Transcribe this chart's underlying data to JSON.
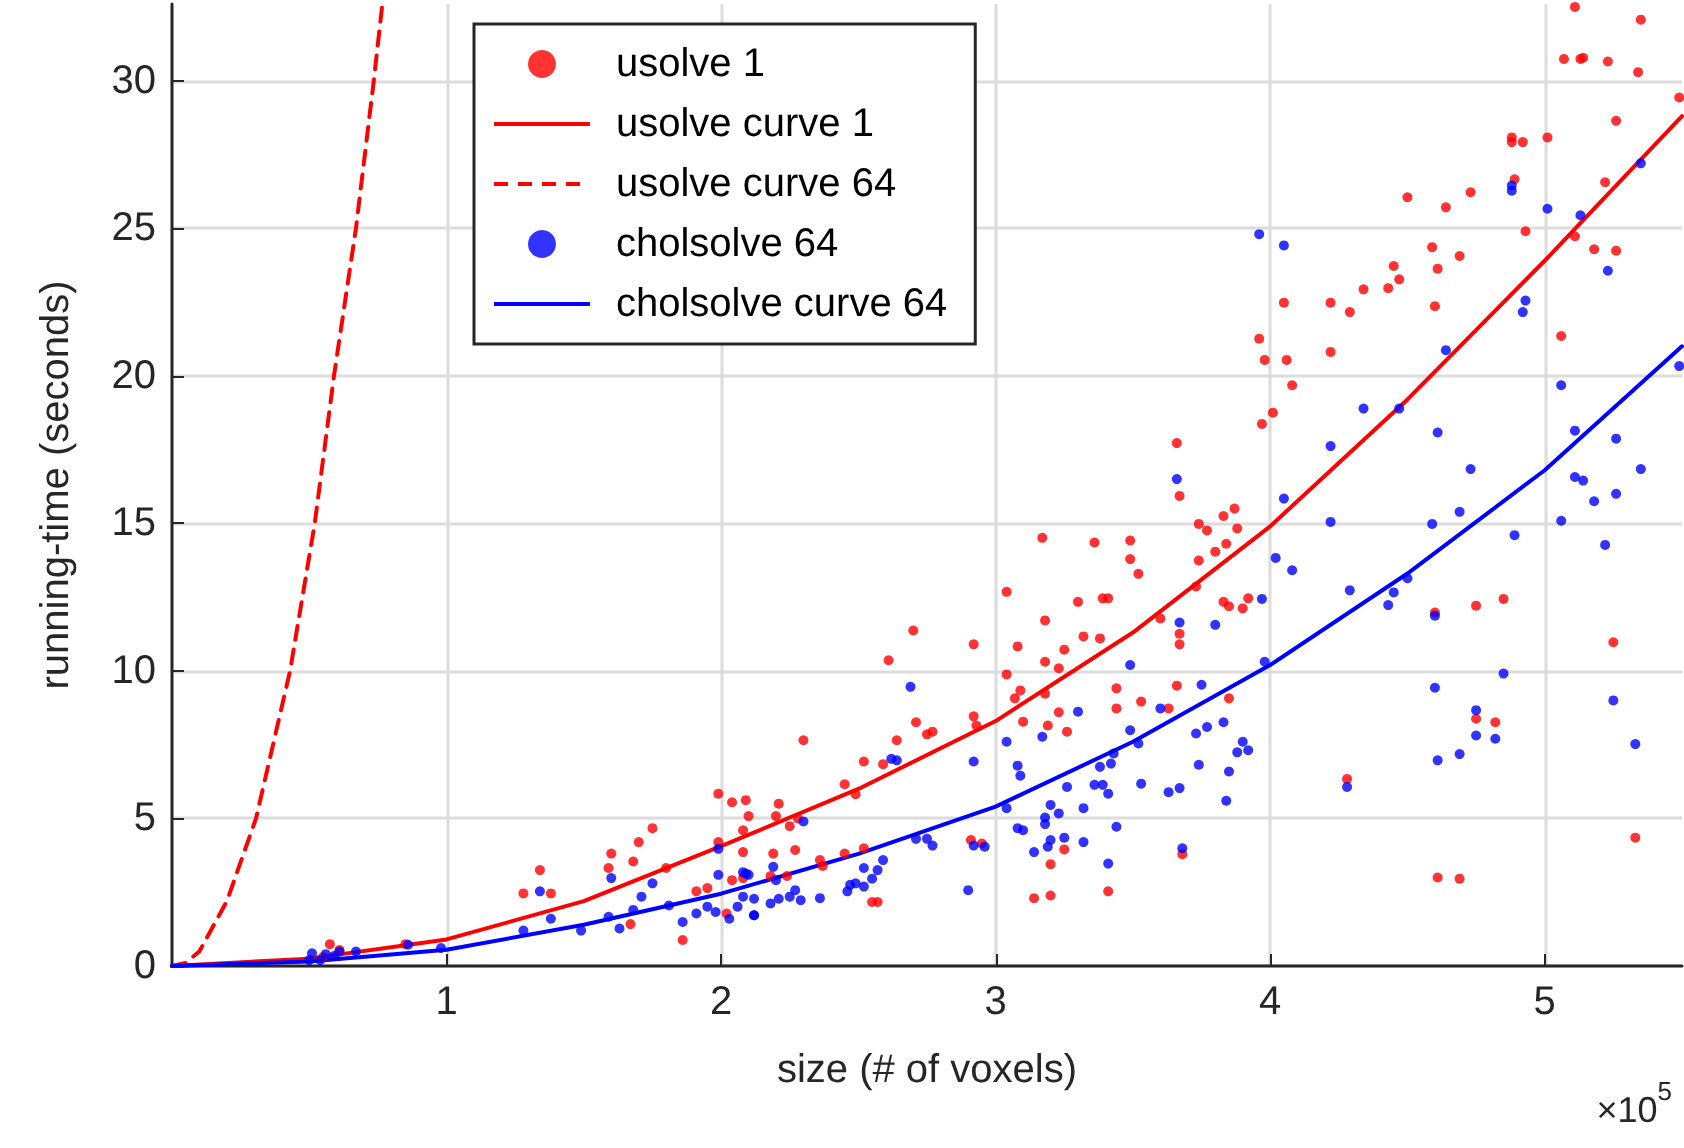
{
  "chart_data": {
    "type": "scatter",
    "xlabel": "size (# of voxels)",
    "ylabel": "running-time (seconds)",
    "annotations": [
      "×10$^{5}$"
    ],
    "xlim": [
      0,
      5.5
    ],
    "xticks": [
      1,
      2,
      3,
      4,
      5
    ],
    "ylim": [
      0,
      32.6
    ],
    "yticks": [
      0,
      5,
      10,
      15,
      20,
      25,
      30
    ],
    "grid": true,
    "legend": "top",
    "marker": "circle",
    "series": [
      {
        "name": "usolve 1",
        "type": "scatter",
        "color": "#ff0000",
        "x": [
          0.55,
          0.575,
          0.61,
          0.85,
          1.28,
          1.34,
          1.38,
          1.6,
          1.59,
          1.68,
          1.7,
          1.75,
          1.8,
          1.67,
          1.86,
          1.91,
          1.95,
          1.99,
          2.04,
          2.09,
          2.1,
          2.08,
          2.08,
          1.99,
          2.04,
          2.08,
          2.02,
          2.21,
          2.2,
          2.25,
          2.28,
          2.3,
          2.27,
          2.19,
          2.18,
          2.24,
          2.36,
          2.37,
          2.45,
          2.52,
          2.45,
          2.49,
          2.52,
          2.59,
          2.61,
          2.64,
          2.7,
          2.71,
          2.75,
          2.77,
          2.55,
          2.57,
          2.91,
          2.95,
          2.92,
          2.92,
          2.93,
          3.04,
          3.04,
          3.08,
          3.07,
          3.09,
          3.1,
          3.17,
          3.18,
          3.18,
          3.18,
          3.19,
          3.23,
          3.23,
          3.25,
          3.26,
          3.3,
          3.32,
          3.36,
          3.38,
          3.39,
          3.41,
          3.14,
          3.2,
          3.2,
          3.25,
          3.41,
          3.44,
          3.44,
          3.49,
          3.49,
          3.52,
          3.53,
          3.6,
          3.63,
          3.66,
          3.67,
          3.67,
          3.67,
          3.66,
          3.68,
          3.73,
          3.74,
          3.77,
          3.74,
          3.8,
          3.83,
          3.87,
          3.88,
          3.84,
          3.83,
          3.85,
          3.9,
          3.92,
          3.85,
          3.97,
          4.01,
          3.96,
          3.98,
          4.05,
          4.06,
          4.08,
          4.22,
          4.22,
          4.29,
          4.34,
          4.43,
          4.45,
          4.47,
          4.5,
          4.59,
          4.6,
          4.61,
          4.64,
          4.69,
          4.73,
          4.28,
          4.6,
          4.75,
          4.85,
          4.75,
          4.82,
          4.61,
          4.69,
          4.88,
          4.88,
          4.92,
          4.89,
          4.93,
          5.01,
          5.06,
          5.07,
          5.11,
          5.13,
          5.14,
          5.11,
          5.18,
          5.22,
          5.23,
          5.26,
          5.26,
          5.25,
          5.35,
          5.34,
          5.33,
          5.49
        ],
        "values": [
          0.3,
          0.74,
          0.54,
          0.74,
          2.46,
          3.25,
          2.46,
          3.81,
          3.32,
          3.54,
          4.2,
          4.67,
          3.32,
          1.42,
          0.88,
          2.53,
          2.64,
          5.84,
          5.55,
          5.62,
          5.08,
          4.6,
          3.86,
          4.2,
          2.91,
          2.98,
          1.78,
          5.5,
          5.08,
          4.74,
          5.0,
          7.65,
          3.93,
          3.81,
          3.05,
          3.05,
          3.59,
          3.39,
          3.81,
          3.99,
          6.16,
          5.82,
          6.93,
          6.84,
          10.36,
          7.65,
          11.37,
          8.26,
          7.85,
          7.94,
          2.17,
          2.17,
          4.27,
          4.15,
          10.9,
          8.46,
          8.15,
          12.68,
          9.88,
          10.83,
          9.07,
          9.34,
          8.28,
          14.51,
          11.71,
          10.31,
          9.23,
          8.15,
          8.6,
          10.09,
          10.72,
          7.94,
          12.34,
          11.17,
          14.35,
          11.1,
          12.46,
          12.46,
          2.3,
          2.39,
          3.45,
          3.95,
          2.53,
          9.41,
          8.73,
          14.42,
          13.79,
          13.29,
          8.96,
          11.78,
          8.73,
          17.72,
          15.93,
          11.26,
          10.9,
          9.5,
          3.79,
          12.86,
          14.98,
          14.76,
          13.74,
          14.04,
          15.25,
          15.5,
          14.83,
          14.31,
          12.34,
          12.19,
          12.12,
          12.46,
          9.07,
          18.37,
          18.75,
          21.26,
          20.54,
          22.48,
          20.54,
          19.68,
          20.81,
          22.48,
          22.16,
          22.93,
          22.97,
          23.72,
          23.27,
          26.05,
          24.36,
          22.36,
          23.63,
          25.71,
          24.06,
          26.22,
          6.34,
          11.98,
          12.21,
          12.44,
          8.38,
          8.26,
          3.0,
          2.96,
          28.08,
          27.92,
          27.92,
          26.66,
          24.9,
          28.08,
          21.35,
          30.74,
          32.5,
          30.74,
          30.78,
          24.73,
          24.29,
          26.56,
          30.65,
          28.64,
          24.24,
          10.97,
          32.07,
          30.29,
          4.35,
          29.43
        ]
      },
      {
        "name": "usolve curve 1",
        "type": "line",
        "color": "#ff0000",
        "line_style": "solid",
        "marker": "none",
        "x": [
          0,
          0.5,
          1,
          1.5,
          2,
          2.5,
          3,
          3.5,
          4,
          4.5,
          5,
          5.5
        ],
        "values": [
          0,
          0.25,
          0.9,
          2.2,
          4.06,
          6.0,
          8.3,
          11.3,
          14.9,
          19.2,
          23.9,
          28.8
        ]
      },
      {
        "name": "usolve curve 64",
        "type": "line",
        "color": "#ff0000",
        "line_style": "dashed",
        "marker": "none",
        "x": [
          0,
          0.05,
          0.1,
          0.2,
          0.306,
          0.43,
          0.52,
          0.59,
          0.67,
          0.735,
          0.765
        ],
        "values": [
          0,
          0.1,
          0.5,
          2.2,
          5,
          10,
          15,
          20,
          25,
          30,
          32.5
        ]
      },
      {
        "name": "cholsolve 64",
        "type": "scatter",
        "color": "#0000ff",
        "x": [
          0.51,
          0.54,
          0.56,
          0.59,
          0.61,
          0.67,
          0.5,
          0.86,
          0.98,
          1.28,
          1.34,
          1.38,
          1.49,
          1.6,
          1.59,
          1.63,
          1.68,
          1.71,
          1.75,
          1.81,
          1.86,
          1.91,
          1.95,
          1.99,
          1.99,
          1.98,
          2.03,
          2.06,
          2.08,
          2.1,
          2.12,
          2.08,
          2.12,
          2.12,
          2.09,
          2.18,
          2.2,
          2.21,
          2.25,
          2.27,
          2.3,
          2.29,
          2.19,
          2.36,
          2.46,
          2.47,
          2.49,
          2.52,
          2.55,
          2.57,
          2.59,
          2.52,
          2.62,
          2.64,
          2.69,
          2.71,
          2.75,
          2.77,
          2.9,
          2.92,
          2.92,
          2.96,
          3.04,
          3.04,
          3.08,
          3.09,
          3.08,
          3.1,
          3.14,
          3.17,
          3.18,
          3.18,
          3.19,
          3.2,
          3.2,
          3.23,
          3.25,
          3.26,
          3.3,
          3.32,
          3.32,
          3.36,
          3.38,
          3.39,
          3.41,
          3.41,
          3.42,
          3.43,
          3.44,
          3.49,
          3.49,
          3.52,
          3.53,
          3.6,
          3.63,
          3.67,
          3.66,
          3.67,
          3.68,
          3.73,
          3.74,
          3.75,
          3.77,
          3.8,
          3.83,
          3.84,
          3.85,
          3.88,
          3.9,
          3.92,
          3.96,
          3.97,
          3.98,
          4.02,
          4.05,
          4.05,
          4.08,
          4.22,
          4.22,
          4.28,
          4.29,
          4.34,
          4.43,
          4.45,
          4.47,
          4.5,
          4.59,
          4.6,
          4.6,
          4.61,
          4.61,
          4.64,
          4.69,
          4.69,
          4.73,
          4.75,
          4.75,
          4.82,
          4.85,
          4.88,
          4.88,
          4.89,
          4.92,
          4.93,
          5.01,
          5.06,
          5.06,
          5.11,
          5.11,
          5.13,
          5.14,
          5.18,
          5.22,
          5.23,
          5.25,
          5.26,
          5.26,
          5.33,
          5.35,
          5.35,
          5.49
        ],
        "values": [
          0.43,
          0.2,
          0.4,
          0.34,
          0.49,
          0.49,
          0.2,
          0.72,
          0.61,
          1.2,
          2.53,
          1.6,
          1.2,
          2.98,
          1.67,
          1.27,
          1.9,
          2.35,
          2.8,
          2.05,
          1.49,
          1.78,
          2.01,
          3.09,
          3.97,
          1.83,
          1.6,
          2.01,
          3.18,
          3.09,
          1.72,
          2.35,
          2.28,
          1.72,
          3.13,
          2.12,
          2.91,
          2.28,
          2.35,
          2.57,
          4.9,
          2.23,
          3.36,
          2.3,
          2.53,
          2.75,
          2.8,
          2.69,
          2.96,
          3.25,
          3.59,
          3.32,
          7.02,
          6.97,
          9.46,
          4.31,
          4.31,
          4.08,
          2.57,
          6.93,
          4.08,
          4.04,
          5.35,
          7.6,
          6.79,
          6.45,
          4.67,
          4.6,
          3.86,
          7.77,
          5.03,
          4.81,
          4.04,
          5.46,
          4.27,
          5.17,
          4.35,
          6.07,
          8.62,
          5.35,
          4.2,
          6.14,
          6.75,
          6.14,
          5.84,
          3.47,
          6.86,
          7.2,
          4.72,
          7.99,
          10.2,
          7.54,
          6.18,
          8.73,
          5.89,
          6.03,
          16.5,
          11.64,
          3.99,
          7.88,
          6.82,
          9.53,
          8.1,
          11.56,
          8.26,
          5.6,
          6.59,
          7.24,
          7.6,
          7.31,
          24.8,
          12.44,
          10.31,
          13.83,
          24.42,
          15.84,
          13.41,
          17.62,
          15.05,
          6.07,
          12.73,
          18.89,
          12.23,
          12.66,
          18.89,
          13.14,
          14.98,
          11.87,
          9.43,
          18.08,
          6.97,
          20.87,
          7.18,
          15.39,
          16.84,
          8.67,
          7.81,
          7.7,
          9.91,
          26.45,
          26.27,
          14.6,
          22.16,
          22.55,
          25.66,
          19.68,
          15.09,
          18.14,
          16.57,
          25.44,
          16.45,
          15.75,
          14.27,
          23.56,
          9.0,
          17.87,
          16.0,
          7.52,
          27.2,
          16.84,
          20.33
        ]
      },
      {
        "name": "cholsolve curve 64",
        "type": "line",
        "color": "#0000ff",
        "line_style": "solid",
        "marker": "none",
        "x": [
          0,
          0.5,
          1,
          1.5,
          2,
          2.5,
          3,
          3.5,
          4,
          4.5,
          5,
          5.5
        ],
        "values": [
          0,
          0.15,
          0.55,
          1.4,
          2.45,
          3.8,
          5.4,
          7.6,
          10.2,
          13.3,
          16.8,
          21.0
        ]
      }
    ]
  }
}
